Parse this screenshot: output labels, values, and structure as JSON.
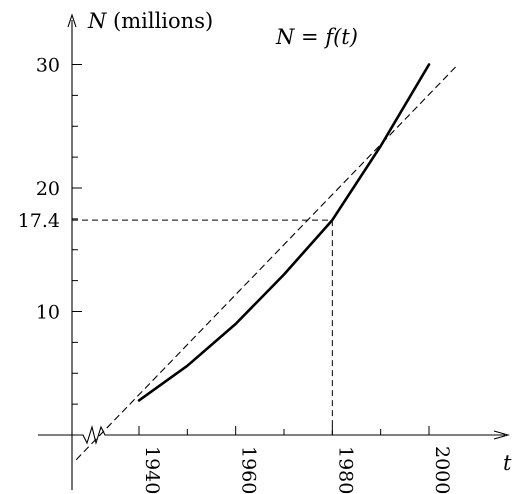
{
  "chart_data": {
    "type": "line",
    "function_label": "N = f(t)",
    "ylabel": "N (millions)",
    "xlabel": "t",
    "x_ticks": [
      1940,
      1960,
      1980,
      2000
    ],
    "y_ticks": [
      10,
      20,
      30
    ],
    "y_tick_labels": [
      "10",
      "20",
      "30"
    ],
    "x_tick_labels": [
      "1940",
      "1960",
      "1980",
      "2000"
    ],
    "marked_point": {
      "x": 1980,
      "y": 17.4,
      "y_label": "17.4"
    },
    "series": [
      {
        "style": "solid",
        "x": [
          1940,
          1950,
          1960,
          1970,
          1980,
          1990,
          2000
        ],
        "y": [
          2.8,
          5.6,
          9.0,
          13.0,
          17.4,
          23.4,
          30.0
        ]
      },
      {
        "style": "dashed",
        "x": [
          1927,
          2006
        ],
        "y": [
          -2.0,
          30.0
        ]
      }
    ],
    "xlim": [
      1927,
      2015
    ],
    "ylim": [
      -2.0,
      31.0
    ],
    "axis_break": true,
    "grid": false
  }
}
